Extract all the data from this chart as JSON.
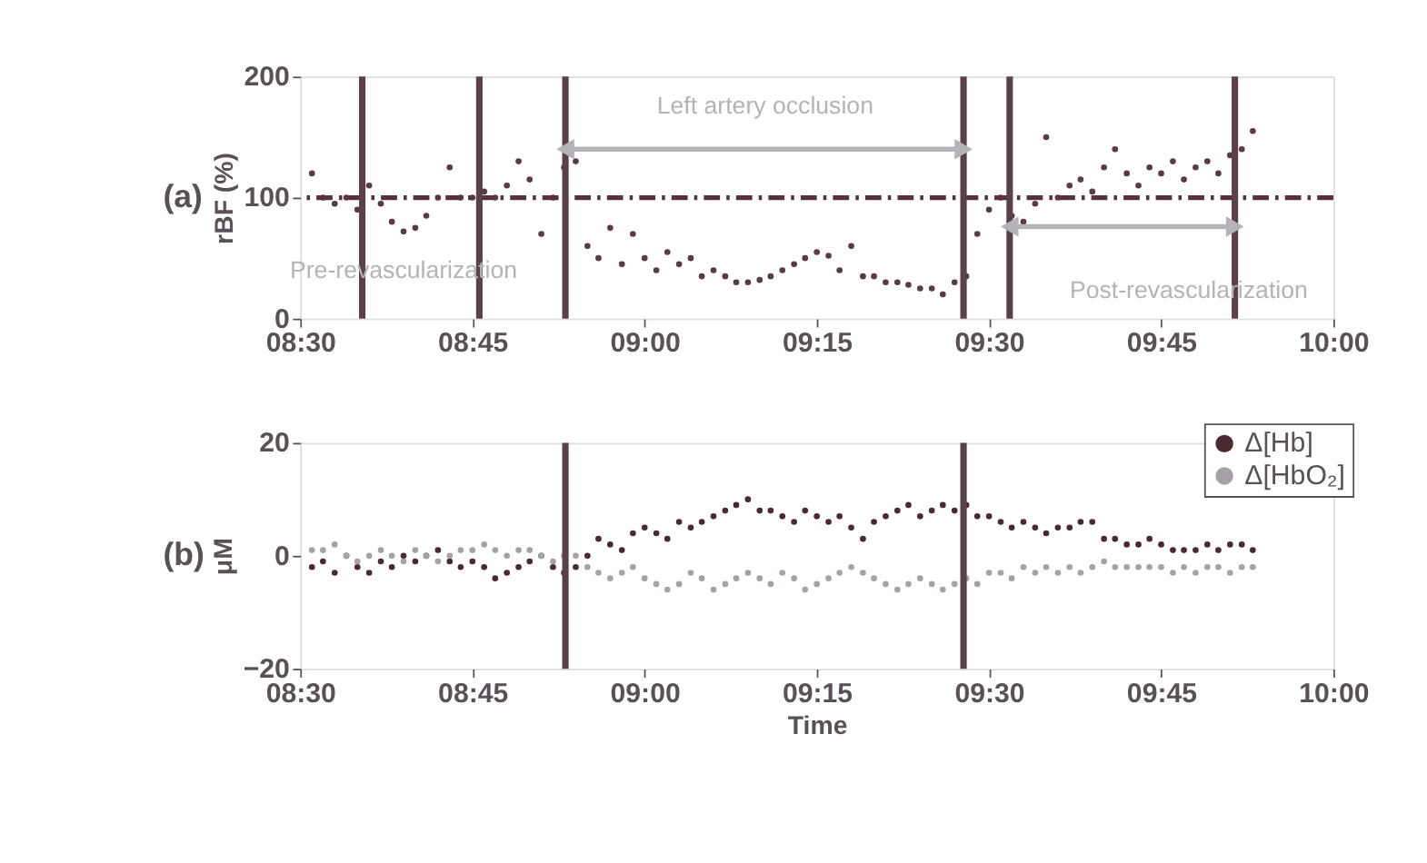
{
  "chart_data": [
    {
      "type": "scatter",
      "ylabel": "rBF (%)",
      "annotations": [
        "(a)",
        "Left artery occlusion",
        "Pre-revascularization",
        "Post-revascularization"
      ],
      "xlim": [
        8.5,
        10
      ],
      "xticks": [
        {
          "value": 8.5,
          "label": "08:30"
        },
        {
          "value": 8.75,
          "label": "08:45"
        },
        {
          "value": 9,
          "label": "09:00"
        },
        {
          "value": 9.25,
          "label": "09:15"
        },
        {
          "value": 9.5,
          "label": "09:30"
        },
        {
          "value": 9.75,
          "label": "09:45"
        },
        {
          "value": 10,
          "label": "10:00"
        }
      ],
      "ylim": [
        0,
        200
      ],
      "yticks": [
        0,
        100,
        200
      ],
      "grid": false,
      "legend": false,
      "marker": "circle",
      "x": [
        8.517,
        8.533,
        8.55,
        8.567,
        8.583,
        8.6,
        8.617,
        8.633,
        8.65,
        8.667,
        8.683,
        8.7,
        8.717,
        8.733,
        8.75,
        8.767,
        8.783,
        8.8,
        8.817,
        8.833,
        8.85,
        8.867,
        8.883,
        8.9,
        8.917,
        8.933,
        8.95,
        8.967,
        8.983,
        9.0,
        9.017,
        9.033,
        9.05,
        9.067,
        9.083,
        9.1,
        9.117,
        9.133,
        9.15,
        9.167,
        9.183,
        9.2,
        9.217,
        9.233,
        9.25,
        9.267,
        9.283,
        9.3,
        9.317,
        9.333,
        9.35,
        9.367,
        9.383,
        9.4,
        9.417,
        9.433,
        9.45,
        9.467,
        9.483,
        9.5,
        9.517,
        9.533,
        9.55,
        9.567,
        9.583,
        9.6,
        9.617,
        9.633,
        9.65,
        9.667,
        9.683,
        9.7,
        9.717,
        9.733,
        9.75,
        9.767,
        9.783,
        9.8,
        9.817,
        9.833,
        9.85,
        9.867,
        9.883
      ],
      "series": [
        {
          "color": "#5a3a45",
          "values": [
            120,
            100,
            95,
            100,
            90,
            110,
            95,
            80,
            72,
            75,
            85,
            100,
            125,
            100,
            100,
            105,
            100,
            110,
            130,
            115,
            70,
            100,
            125,
            130,
            60,
            50,
            75,
            45,
            70,
            50,
            40,
            55,
            45,
            50,
            35,
            40,
            35,
            30,
            30,
            32,
            35,
            40,
            45,
            50,
            55,
            52,
            40,
            60,
            35,
            35,
            30,
            30,
            28,
            25,
            25,
            20,
            30,
            35,
            70,
            90,
            100,
            85,
            80,
            95,
            150,
            100,
            110,
            115,
            105,
            125,
            140,
            120,
            110,
            125,
            120,
            130,
            115,
            125,
            130,
            120,
            135,
            140,
            155
          ]
        }
      ],
      "ref_lines": [
        {
          "axis": "y",
          "value": 100,
          "color": "#5a3040",
          "line_style": "dashed"
        },
        {
          "axis": "x",
          "value": 8.59,
          "color": "#5a4048"
        },
        {
          "axis": "x",
          "value": 8.76,
          "color": "#5a4048"
        },
        {
          "axis": "x",
          "value": 8.885,
          "color": "#5a4048"
        },
        {
          "axis": "x",
          "value": 9.463,
          "color": "#5a4048"
        },
        {
          "axis": "x",
          "value": 9.53,
          "color": "#5a4048"
        },
        {
          "axis": "x",
          "value": 9.857,
          "color": "#5a4048"
        }
      ]
    },
    {
      "type": "scatter",
      "ylabel": "μM",
      "xlabel": "Time",
      "annotations": [
        "(b)"
      ],
      "xlim": [
        8.5,
        10
      ],
      "xticks": [
        {
          "value": 8.5,
          "label": "08:30"
        },
        {
          "value": 8.75,
          "label": "08:45"
        },
        {
          "value": 9,
          "label": "09:00"
        },
        {
          "value": 9.25,
          "label": "09:15"
        },
        {
          "value": 9.5,
          "label": "09:30"
        },
        {
          "value": 9.75,
          "label": "09:45"
        },
        {
          "value": 10,
          "label": "10:00"
        }
      ],
      "ylim": [
        -20,
        20
      ],
      "yticks": [
        -20,
        0,
        20
      ],
      "grid": false,
      "legend": "top right",
      "marker": "circle",
      "x": [
        8.517,
        8.533,
        8.55,
        8.567,
        8.583,
        8.6,
        8.617,
        8.633,
        8.65,
        8.667,
        8.683,
        8.7,
        8.717,
        8.733,
        8.75,
        8.767,
        8.783,
        8.8,
        8.817,
        8.833,
        8.85,
        8.867,
        8.883,
        8.9,
        8.917,
        8.933,
        8.95,
        8.967,
        8.983,
        9.0,
        9.017,
        9.033,
        9.05,
        9.067,
        9.083,
        9.1,
        9.117,
        9.133,
        9.15,
        9.167,
        9.183,
        9.2,
        9.217,
        9.233,
        9.25,
        9.267,
        9.283,
        9.3,
        9.317,
        9.333,
        9.35,
        9.367,
        9.383,
        9.4,
        9.417,
        9.433,
        9.45,
        9.467,
        9.483,
        9.5,
        9.517,
        9.533,
        9.55,
        9.567,
        9.583,
        9.6,
        9.617,
        9.633,
        9.65,
        9.667,
        9.683,
        9.7,
        9.717,
        9.733,
        9.75,
        9.767,
        9.783,
        9.8,
        9.817,
        9.833,
        9.85,
        9.867,
        9.883
      ],
      "series": [
        {
          "name": "Δ[Hb]",
          "color": "#4a2a30",
          "values": [
            -2,
            -1,
            -3,
            0,
            -2,
            -3,
            -1,
            -2,
            0,
            -1,
            0,
            1,
            -1,
            -2,
            -1,
            -2,
            -4,
            -3,
            -2,
            -1,
            0,
            -2,
            -3,
            -2,
            0,
            3,
            2,
            1,
            4,
            5,
            4,
            3,
            6,
            5,
            6,
            7,
            8,
            9,
            10,
            8,
            8,
            7,
            6,
            8,
            7,
            6,
            7,
            5,
            3,
            6,
            7,
            8,
            9,
            7,
            8,
            9,
            8,
            9,
            7,
            7,
            6,
            5,
            6,
            5,
            4,
            5,
            5,
            6,
            6,
            3,
            3,
            2,
            2,
            3,
            2,
            1,
            1,
            1,
            2,
            1,
            2,
            2,
            1
          ]
        },
        {
          "name": "Δ[HbO₂]",
          "color": "#a8a0a8",
          "values": [
            1,
            1,
            2,
            0,
            -1,
            0,
            1,
            0,
            -1,
            1,
            0,
            -1,
            0,
            1,
            1,
            2,
            1,
            0,
            1,
            1,
            0,
            -1,
            0,
            0,
            -2,
            -3,
            -4,
            -3,
            -2,
            -4,
            -5,
            -6,
            -5,
            -3,
            -4,
            -6,
            -5,
            -4,
            -3,
            -4,
            -5,
            -3,
            -4,
            -6,
            -5,
            -4,
            -3,
            -2,
            -3,
            -4,
            -5,
            -6,
            -5,
            -4,
            -5,
            -6,
            -5,
            -4,
            -5,
            -3,
            -3,
            -4,
            -2,
            -3,
            -2,
            -3,
            -2,
            -3,
            -2,
            -1,
            -2,
            -2,
            -2,
            -2,
            -2,
            -3,
            -2,
            -3,
            -2,
            -2,
            -3,
            -2,
            -2
          ]
        }
      ],
      "ref_lines": [
        {
          "axis": "x",
          "value": 8.885,
          "color": "#5a4048"
        },
        {
          "axis": "x",
          "value": 9.463,
          "color": "#5a4048"
        }
      ]
    }
  ]
}
